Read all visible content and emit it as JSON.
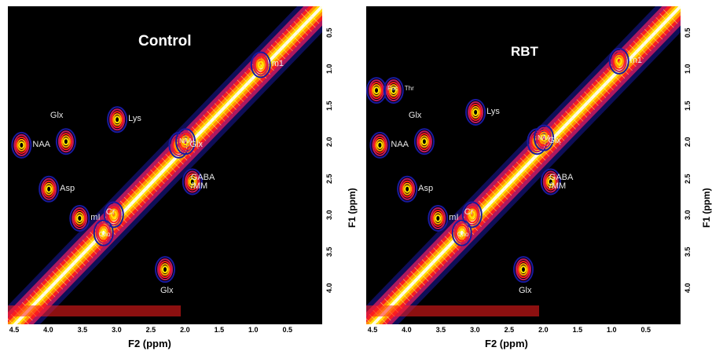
{
  "chart_data": [
    {
      "type": "heatmap",
      "subtype": "2D NMR contour spectrum",
      "title": "Control",
      "xlabel": "F2 (ppm)",
      "ylabel": "F1 (ppm)",
      "x_reversed": true,
      "xlim": [
        4.6,
        0.0
      ],
      "ylim": [
        0.15,
        4.5
      ],
      "x_ticks": [
        "4.5",
        "4.0",
        "3.5",
        "3.0",
        "2.5",
        "2.0",
        "1.5",
        "1.0",
        "0.5"
      ],
      "y_ticks": [
        "0.5",
        "1.0",
        "1.5",
        "2.0",
        "2.5",
        "3.0",
        "3.5",
        "4.0"
      ],
      "colormap": [
        "#1a1aa0",
        "#c01a60",
        "#ff1e1e",
        "#ff9a00",
        "#ffe600",
        "#ffffff"
      ],
      "diagonal": {
        "x": [
          4.6,
          0.0
        ],
        "y": [
          4.6,
          0.15
        ]
      },
      "peaks": [
        {
          "label": "m1",
          "x": 0.9,
          "y": 0.95
        },
        {
          "label": "Lys",
          "x": 3.0,
          "y": 1.7
        },
        {
          "label": "Glx",
          "x": 3.75,
          "y": 2.0
        },
        {
          "label": "Glx",
          "x": 2.1,
          "y": 2.05
        },
        {
          "label": "NAA",
          "x": 2.0,
          "y": 2.0
        },
        {
          "label": "NAA",
          "x": 4.4,
          "y": 2.05
        },
        {
          "label": "Asp",
          "x": 4.0,
          "y": 2.65
        },
        {
          "label": "GABA\n/MM",
          "x": 1.9,
          "y": 2.55
        },
        {
          "label": "mI",
          "x": 3.55,
          "y": 3.05
        },
        {
          "label": "Cr",
          "x": 3.05,
          "y": 3.0
        },
        {
          "label": "Cho",
          "x": 3.2,
          "y": 3.25
        },
        {
          "label": "Glx",
          "x": 2.3,
          "y": 3.75
        }
      ]
    },
    {
      "type": "heatmap",
      "subtype": "2D NMR contour spectrum",
      "title": "RBT",
      "xlabel": "F2 (ppm)",
      "ylabel": "F1 (ppm)",
      "x_reversed": true,
      "xlim": [
        4.6,
        0.0
      ],
      "ylim": [
        0.15,
        4.5
      ],
      "x_ticks": [
        "4.5",
        "4.0",
        "3.5",
        "3.0",
        "2.5",
        "2.0",
        "1.5",
        "1.0",
        "0.5"
      ],
      "y_ticks": [
        "0.5",
        "1.0",
        "1.5",
        "2.0",
        "2.5",
        "3.0",
        "3.5",
        "4.0"
      ],
      "colormap": [
        "#1a1aa0",
        "#c01a60",
        "#ff1e1e",
        "#ff9a00",
        "#ffe600",
        "#ffffff"
      ],
      "diagonal": {
        "x": [
          4.6,
          0.0
        ],
        "y": [
          4.6,
          0.15
        ]
      },
      "peaks": [
        {
          "label": "m1",
          "x": 0.9,
          "y": 0.9
        },
        {
          "label": "Fuc",
          "x": 4.45,
          "y": 1.3
        },
        {
          "label": "Thr",
          "x": 4.2,
          "y": 1.3
        },
        {
          "label": "Lys",
          "x": 3.0,
          "y": 1.6
        },
        {
          "label": "Glx",
          "x": 3.75,
          "y": 2.0
        },
        {
          "label": "Glx",
          "x": 2.1,
          "y": 2.0
        },
        {
          "label": "NAA",
          "x": 2.0,
          "y": 1.95
        },
        {
          "label": "NAA",
          "x": 4.4,
          "y": 2.05
        },
        {
          "label": "Asp",
          "x": 4.0,
          "y": 2.65
        },
        {
          "label": "GABA\n/MM",
          "x": 1.9,
          "y": 2.55
        },
        {
          "label": "mI",
          "x": 3.55,
          "y": 3.05
        },
        {
          "label": "Cr",
          "x": 3.05,
          "y": 3.0
        },
        {
          "label": "Cho",
          "x": 3.2,
          "y": 3.25
        },
        {
          "label": "Glx",
          "x": 2.3,
          "y": 3.75
        }
      ]
    }
  ]
}
